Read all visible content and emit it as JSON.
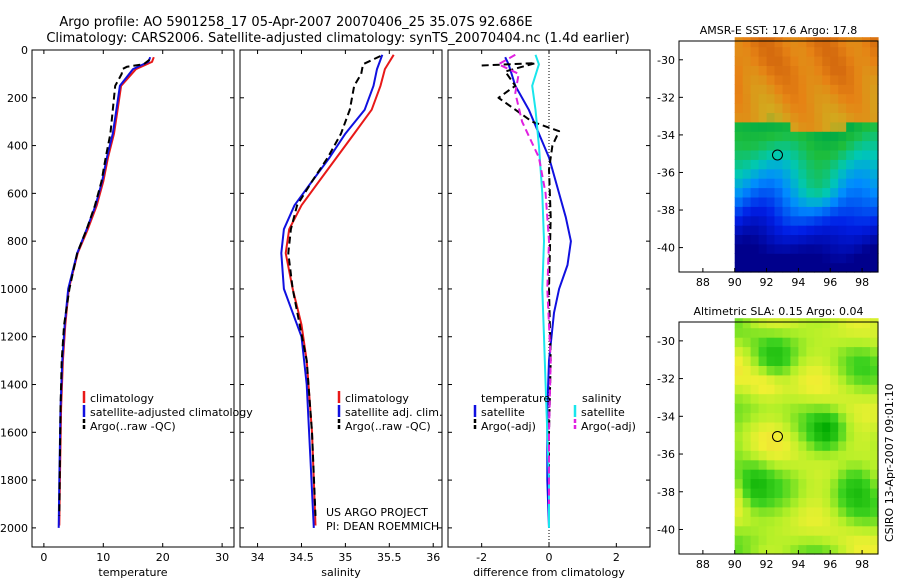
{
  "figure": {
    "title_line1": "Argo profile: AO 5901258_17 05-Apr-2007 20070406_25 35.07S 92.686E",
    "title_line2": "Climatology: CARS2006. Satellite-adjusted climatology: synTS_20070404.nc (1.4d earlier)",
    "credit_line1": "US ARGO PROJECT",
    "credit_line2": "PI: DEAN ROEMMICH",
    "side_stamp": "CSIRO 13-Apr-2007 09:01:10"
  },
  "colors": {
    "climatology": "#e81818",
    "satellite": "#1010e0",
    "argo": "#000000",
    "sat_salinity": "#19e6ec",
    "argo_salinity": "#e020e0"
  },
  "chart_data": [
    {
      "id": "temperature",
      "type": "line",
      "xlabel": "temperature",
      "ylabel": "",
      "xlim": [
        -2,
        32
      ],
      "ylim": [
        0,
        2080
      ],
      "x_ticks": [
        0,
        10,
        20,
        30
      ],
      "y_ticks": [
        0,
        200,
        400,
        600,
        800,
        1000,
        1200,
        1400,
        1600,
        1800,
        2000
      ],
      "y_reversed": true,
      "legend": [
        "climatology",
        "satellite-adjusted climatology",
        "Argo(..raw -QC)"
      ],
      "series": [
        {
          "name": "climatology",
          "color_key": "climatology",
          "dash": false,
          "x": [
            18.5,
            18.2,
            15.5,
            13.0,
            12.4,
            11.8,
            10.8,
            10.0,
            8.9,
            7.4,
            5.7,
            4.2,
            3.6,
            3.2,
            2.9,
            2.7,
            2.6
          ],
          "y": [
            30,
            50,
            80,
            150,
            250,
            350,
            450,
            550,
            650,
            750,
            850,
            1000,
            1150,
            1300,
            1500,
            1800,
            1990
          ]
        },
        {
          "name": "satellite-adjusted climatology",
          "color_key": "satellite",
          "dash": false,
          "x": [
            17.9,
            17.6,
            15.0,
            12.8,
            12.2,
            11.6,
            10.6,
            9.8,
            8.7,
            7.2,
            5.6,
            4.1,
            3.5,
            3.1,
            2.8,
            2.6,
            2.5
          ],
          "y": [
            30,
            50,
            80,
            150,
            250,
            350,
            450,
            550,
            650,
            750,
            850,
            1000,
            1150,
            1300,
            1500,
            1800,
            2000
          ]
        },
        {
          "name": "Argo(..raw -QC)",
          "color_key": "argo",
          "dash": true,
          "x": [
            17.8,
            16.8,
            14.0,
            13.2,
            13.1,
            12.0,
            11.6,
            11.2,
            10.4,
            9.7,
            8.6,
            7.2,
            5.6,
            4.3,
            3.4,
            3.0,
            2.8,
            2.6
          ],
          "y": [
            40,
            60,
            70,
            80,
            100,
            150,
            250,
            350,
            450,
            550,
            650,
            750,
            850,
            1000,
            1150,
            1300,
            1500,
            1950
          ]
        }
      ]
    },
    {
      "id": "salinity",
      "type": "line",
      "xlabel": "salinity",
      "ylabel": "",
      "xlim": [
        33.8,
        36.1
      ],
      "ylim": [
        0,
        2080
      ],
      "x_ticks": [
        34,
        34.5,
        35,
        35.5,
        36
      ],
      "x_tick_labels": [
        "34",
        "34.5",
        "35",
        "35.5",
        "36"
      ],
      "y_reversed": true,
      "legend": [
        "climatology",
        "satellite adj. clim.",
        "Argo(..raw -QC)"
      ],
      "series": [
        {
          "name": "climatology",
          "color_key": "climatology",
          "dash": false,
          "x": [
            35.55,
            35.45,
            35.4,
            35.3,
            35.1,
            34.9,
            34.7,
            34.5,
            34.36,
            34.32,
            34.4,
            34.5,
            34.56,
            34.62,
            34.66
          ],
          "y": [
            20,
            80,
            150,
            250,
            350,
            450,
            550,
            650,
            750,
            850,
            1000,
            1150,
            1300,
            1600,
            1990
          ]
        },
        {
          "name": "satellite adj. clim.",
          "color_key": "satellite",
          "dash": false,
          "x": [
            35.42,
            35.36,
            35.32,
            35.22,
            35.0,
            34.82,
            34.62,
            34.42,
            34.3,
            34.27,
            34.3,
            34.4,
            34.5,
            34.56,
            34.6,
            34.64
          ],
          "y": [
            20,
            80,
            150,
            250,
            350,
            450,
            550,
            650,
            750,
            850,
            1000,
            1100,
            1200,
            1400,
            1700,
            2000
          ]
        },
        {
          "name": "Argo(..raw -QC)",
          "color_key": "argo",
          "dash": true,
          "x": [
            35.4,
            35.2,
            35.18,
            35.1,
            35.05,
            34.95,
            34.8,
            34.62,
            34.45,
            34.38,
            34.35,
            34.4,
            34.48,
            34.56,
            34.62,
            34.66
          ],
          "y": [
            25,
            60,
            100,
            150,
            250,
            350,
            450,
            550,
            650,
            750,
            850,
            1000,
            1150,
            1300,
            1600,
            1950
          ]
        }
      ]
    },
    {
      "id": "difference",
      "type": "line",
      "xlabel": "difference from climatology",
      "ylabel": "",
      "xlim": [
        -3.0,
        3.0
      ],
      "ylim": [
        0,
        2080
      ],
      "x_ticks": [
        -2,
        0,
        2
      ],
      "y_reversed": true,
      "zero_line": true,
      "legend_title_left": "temperature",
      "legend_title_right": "salinity",
      "legend": [
        "satellite",
        "Argo(-adj)",
        "satellite",
        "Argo(-adj)"
      ],
      "series": [
        {
          "name": "temperature satellite",
          "color_key": "satellite",
          "dash": false,
          "x": [
            -1.3,
            -1.2,
            -1.0,
            -0.6,
            -0.3,
            0.0,
            0.1,
            0.3,
            0.5,
            0.65,
            0.55,
            0.3,
            0.15,
            0.0,
            -0.05,
            -0.05,
            0.0
          ],
          "y": [
            30,
            60,
            150,
            250,
            350,
            450,
            500,
            600,
            700,
            800,
            900,
            1000,
            1100,
            1300,
            1500,
            1800,
            2000
          ]
        },
        {
          "name": "temperature Argo(-adj)",
          "color_key": "argo",
          "dash": true,
          "x": [
            -2.0,
            -0.4,
            -1.3,
            -1.0,
            -1.5,
            -0.5,
            0.3,
            0.1,
            0.0,
            0.05,
            0.0,
            0.05,
            0.0,
            0.0
          ],
          "y": [
            65,
            55,
            90,
            150,
            200,
            300,
            340,
            400,
            500,
            700,
            1000,
            1300,
            1600,
            1950
          ]
        },
        {
          "name": "salinity satellite",
          "color_key": "sat_salinity",
          "dash": false,
          "x": [
            -0.4,
            -0.3,
            -0.5,
            -0.4,
            -0.3,
            -0.2,
            -0.15,
            -0.2,
            -0.15,
            -0.1,
            -0.05,
            0.0,
            0.0
          ],
          "y": [
            20,
            60,
            150,
            250,
            400,
            600,
            800,
            1000,
            1200,
            1400,
            1600,
            1800,
            2000
          ]
        },
        {
          "name": "salinity Argo(-adj)",
          "color_key": "argo_salinity",
          "dash": true,
          "x": [
            -1.0,
            -1.5,
            -0.9,
            -1.0,
            -0.8,
            -0.3,
            -0.1,
            0.0,
            -0.05,
            0.05,
            0.0,
            0.0
          ],
          "y": [
            20,
            60,
            100,
            180,
            300,
            450,
            600,
            800,
            1000,
            1300,
            1600,
            1900
          ]
        }
      ]
    },
    {
      "id": "sst_map",
      "type": "heatmap",
      "title": "AMSR-E SST: 17.6 Argo: 17.8",
      "x_ticks": [
        88,
        90,
        92,
        94,
        96,
        98
      ],
      "y_ticks": [
        -30,
        -32,
        -34,
        -36,
        -38,
        -40
      ],
      "xlim": [
        86.5,
        99
      ],
      "ylim": [
        -41.3,
        -29.0
      ],
      "data_xlim": [
        90,
        99
      ],
      "marker": {
        "lon": 92.686,
        "lat": -35.07
      }
    },
    {
      "id": "sla_map",
      "type": "heatmap",
      "title": "Altimetric SLA: 0.15 Argo: 0.04",
      "x_ticks": [
        88,
        90,
        92,
        94,
        96,
        98
      ],
      "y_ticks": [
        -30,
        -32,
        -34,
        -36,
        -38,
        -40
      ],
      "xlim": [
        86.5,
        99
      ],
      "ylim": [
        -41.3,
        -29.0
      ],
      "data_xlim": [
        90,
        99
      ],
      "marker": {
        "lon": 92.686,
        "lat": -35.07
      }
    }
  ]
}
